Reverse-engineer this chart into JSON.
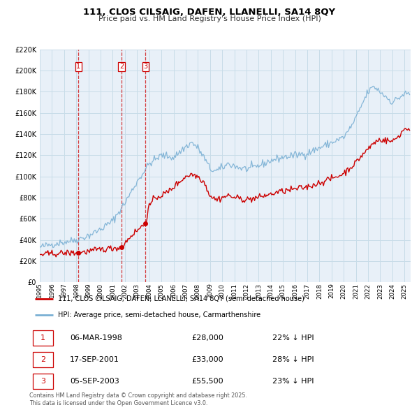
{
  "title": "111, CLOS CILSAIG, DAFEN, LLANELLI, SA14 8QY",
  "subtitle": "Price paid vs. HM Land Registry's House Price Index (HPI)",
  "legend_label_red": "111, CLOS CILSAIG, DAFEN, LLANELLI, SA14 8QY (semi-detached house)",
  "legend_label_blue": "HPI: Average price, semi-detached house, Carmarthenshire",
  "footer": "Contains HM Land Registry data © Crown copyright and database right 2025.\nThis data is licensed under the Open Government Licence v3.0.",
  "transactions": [
    {
      "num": 1,
      "date": 1998.18,
      "price": 28000,
      "date_str": "06-MAR-1998",
      "pct_str": "22% ↓ HPI"
    },
    {
      "num": 2,
      "date": 2001.72,
      "price": 33000,
      "date_str": "17-SEP-2001",
      "pct_str": "28% ↓ HPI"
    },
    {
      "num": 3,
      "date": 2003.68,
      "price": 55500,
      "date_str": "05-SEP-2003",
      "pct_str": "23% ↓ HPI"
    }
  ],
  "color_red": "#cc0000",
  "color_blue": "#7ab0d4",
  "color_grid": "#c8dce8",
  "color_bg": "#e8f0f8",
  "ylim": [
    0,
    220000
  ],
  "xlim_min": 1995.0,
  "xlim_max": 2025.5,
  "yticks": [
    0,
    20000,
    40000,
    60000,
    80000,
    100000,
    120000,
    140000,
    160000,
    180000,
    200000,
    220000
  ]
}
